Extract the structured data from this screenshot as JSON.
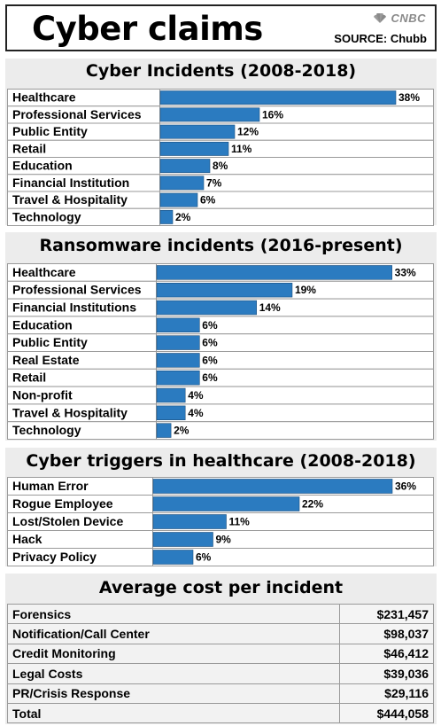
{
  "header": {
    "title": "Cyber claims",
    "logo_text": "CNBC",
    "source": "SOURCE: Chubb"
  },
  "colors": {
    "bar": "#2b7bc0",
    "panel": "#ececec"
  },
  "chart_data": [
    {
      "type": "bar",
      "orientation": "horizontal",
      "title": "Cyber Incidents (2008-2018)",
      "categories": [
        "Healthcare",
        "Professional Services",
        "Public Entity",
        "Retail",
        "Education",
        "Financial Institution",
        "Travel & Hospitality",
        "Technology"
      ],
      "values": [
        38,
        16,
        12,
        11,
        8,
        7,
        6,
        2
      ],
      "labels": [
        "38%",
        "16%",
        "12%",
        "11%",
        "8%",
        "7%",
        "6%",
        "2%"
      ]
    },
    {
      "type": "bar",
      "orientation": "horizontal",
      "title": "Ransomware incidents (2016-present)",
      "categories": [
        "Healthcare",
        "Professional Services",
        "Financial Institutions",
        "Education",
        "Public Entity",
        "Real Estate",
        "Retail",
        "Non-profit",
        "Travel & Hospitality",
        "Technology"
      ],
      "values": [
        33,
        19,
        14,
        6,
        6,
        6,
        6,
        4,
        4,
        2
      ],
      "labels": [
        "33%",
        "19%",
        "14%",
        "6%",
        "6%",
        "6%",
        "6%",
        "4%",
        "4%",
        "2%"
      ]
    },
    {
      "type": "bar",
      "orientation": "horizontal",
      "title": "Cyber triggers in healthcare (2008-2018)",
      "categories": [
        "Human Error",
        "Rogue Employee",
        "Lost/Stolen Device",
        "Hack",
        "Privacy Policy"
      ],
      "values": [
        36,
        22,
        11,
        9,
        6
      ],
      "labels": [
        "36%",
        "22%",
        "11%",
        "9%",
        "6%"
      ]
    },
    {
      "type": "table",
      "title": "Average cost per incident",
      "rows": [
        {
          "label": "Forensics",
          "value": "$231,457"
        },
        {
          "label": "Notification/Call Center",
          "value": "$98,037"
        },
        {
          "label": "Credit Monitoring",
          "value": "$46,412"
        },
        {
          "label": "Legal Costs",
          "value": "$39,036"
        },
        {
          "label": "PR/Crisis Response",
          "value": "$29,116"
        },
        {
          "label": "Total",
          "value": "$444,058"
        }
      ]
    }
  ]
}
